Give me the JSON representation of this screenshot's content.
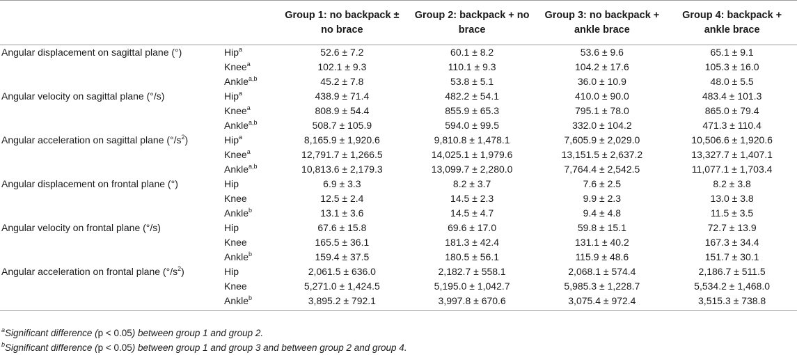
{
  "header": {
    "measure": "",
    "joint": "",
    "groups": [
      "Group 1: no backpack ± no brace",
      "Group 2: backpack + no brace",
      "Group 3: no backpack + ankle brace",
      "Group 4: backpack + ankle brace"
    ]
  },
  "rows": [
    {
      "measure": "Angular displacement on sagittal plane (°)",
      "measure_sup": "",
      "joint": "Hip",
      "sup": "a",
      "values": [
        "52.6 ± 7.2",
        "60.1 ± 8.2",
        "53.6 ± 9.6",
        "65.1 ± 9.1"
      ]
    },
    {
      "measure": "",
      "measure_sup": "",
      "joint": "Knee",
      "sup": "a",
      "values": [
        "102.1 ± 9.3",
        "110.1 ± 9.3",
        "104.2 ± 17.6",
        "105.3 ± 16.0"
      ]
    },
    {
      "measure": "",
      "measure_sup": "",
      "joint": "Ankle",
      "sup": "a,b",
      "values": [
        "45.2 ± 7.8",
        "53.8 ± 5.1",
        "36.0 ± 10.9",
        "48.0 ± 5.5"
      ]
    },
    {
      "measure": "Angular velocity on sagittal plane (°/s)",
      "measure_sup": "",
      "joint": "Hip",
      "sup": "a",
      "values": [
        "438.9 ± 71.4",
        "482.2 ± 54.1",
        "410.0 ± 90.0",
        "483.4 ± 101.3"
      ]
    },
    {
      "measure": "",
      "measure_sup": "",
      "joint": "Knee",
      "sup": "a",
      "values": [
        "808.9 ± 54.4",
        "855.9 ± 65.3",
        "795.1 ± 78.0",
        "865.0 ± 79.4"
      ]
    },
    {
      "measure": "",
      "measure_sup": "",
      "joint": "Ankle",
      "sup": "a,b",
      "values": [
        "508.7 ± 105.9",
        "594.0 ± 99.5",
        "332.0 ± 104.2",
        "471.3 ± 110.4"
      ]
    },
    {
      "measure": "Angular acceleration on sagittal plane (°/s",
      "measure_sup": "2",
      "measure_tail": ")",
      "joint": "Hip",
      "sup": "a",
      "values": [
        "8,165.9 ± 1,920.6",
        "9,810.8 ± 1,478.1",
        "7,605.9 ± 2,029.0",
        "10,506.6 ± 1,920.6"
      ]
    },
    {
      "measure": "",
      "measure_sup": "",
      "joint": "Knee",
      "sup": "a",
      "values": [
        "12,791.7 ± 1,266.5",
        "14,025.1 ± 1,979.6",
        "13,151.5 ± 2,637.2",
        "13,327.7 ± 1,407.1"
      ]
    },
    {
      "measure": "",
      "measure_sup": "",
      "joint": "Ankle",
      "sup": "a,b",
      "values": [
        "10,813.6 ± 2,179.3",
        "13,099.7 ± 2,280.0",
        "7,764.4 ± 2,542.5",
        "11,077.1 ± 1,703.4"
      ]
    },
    {
      "measure": "Angular displacement on frontal plane (°)",
      "measure_sup": "",
      "joint": "Hip",
      "sup": "",
      "values": [
        "6.9 ± 3.3",
        "8.2 ± 3.7",
        "7.6 ± 2.5",
        "8.2 ± 3.8"
      ]
    },
    {
      "measure": "",
      "measure_sup": "",
      "joint": "Knee",
      "sup": "",
      "values": [
        "12.5 ± 2.4",
        "14.5 ± 2.3",
        "9.9 ± 2.3",
        "13.0 ± 3.8"
      ]
    },
    {
      "measure": "",
      "measure_sup": "",
      "joint": "Ankle",
      "sup": "b",
      "values": [
        "13.1 ± 3.6",
        "14.5 ± 4.7",
        "9.4 ± 4.8",
        "11.5 ± 3.5"
      ]
    },
    {
      "measure": "Angular velocity on frontal plane (°/s)",
      "measure_sup": "",
      "joint": "Hip",
      "sup": "",
      "values": [
        "67.6 ± 15.8",
        "69.6 ± 17.0",
        "59.8 ± 15.1",
        "72.7 ± 13.9"
      ]
    },
    {
      "measure": "",
      "measure_sup": "",
      "joint": "Knee",
      "sup": "",
      "values": [
        "165.5 ± 36.1",
        "181.3 ± 42.4",
        "131.1 ± 40.2",
        "167.3 ± 34.4"
      ]
    },
    {
      "measure": "",
      "measure_sup": "",
      "joint": "Ankle",
      "sup": "b",
      "values": [
        "159.4 ± 37.5",
        "180.5 ± 56.1",
        "115.9 ± 48.6",
        "151.7 ± 30.1"
      ]
    },
    {
      "measure": "Angular acceleration on frontal plane (°/s",
      "measure_sup": "2",
      "measure_tail": ")",
      "joint": "Hip",
      "sup": "",
      "values": [
        "2,061.5 ± 636.0",
        "2,182.7 ± 558.1",
        "2,068.1 ± 574.4",
        "2,186.7 ± 511.5"
      ]
    },
    {
      "measure": "",
      "measure_sup": "",
      "joint": "Knee",
      "sup": "",
      "values": [
        "5,271.0 ± 1,424.5",
        "5,195.0 ± 1,042.7",
        "5,985.3 ± 1,228.7",
        "5,534.2 ± 1,468.0"
      ]
    },
    {
      "measure": "",
      "measure_sup": "",
      "joint": "Ankle",
      "sup": "b",
      "values": [
        "3,895.2 ± 792.1",
        "3,997.8 ± 670.6",
        "3,075.4 ± 972.4",
        "3,515.3 ± 738.8"
      ]
    }
  ],
  "footnotes": [
    {
      "mark": "a",
      "text_pre": "Significant difference (",
      "p": "p < 0.05",
      "text_post": ") between group 1 and group 2."
    },
    {
      "mark": "b",
      "text_pre": "Significant difference (",
      "p": "p < 0.05",
      "text_post": ") between group 1 and group 3 and between group 2 and group 4."
    }
  ]
}
